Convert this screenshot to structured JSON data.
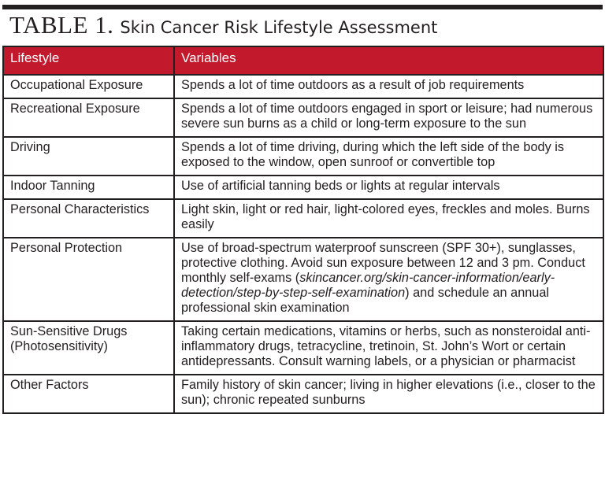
{
  "title": {
    "number": "TABLE 1.",
    "text": "Skin Cancer Risk Lifestyle Assessment"
  },
  "columns": [
    "Lifestyle",
    "Variables"
  ],
  "rows": [
    {
      "lifestyle": "Occupational Exposure",
      "variables": "Spends a lot of time outdoors as a result of job requirements"
    },
    {
      "lifestyle": "Recreational Exposure",
      "variables": "Spends a lot of time outdoors engaged in sport or leisure; had numerous severe sun burns as a child or long-term exposure to the sun"
    },
    {
      "lifestyle": "Driving",
      "variables": "Spends a lot of time driving, during which the left side of the body is exposed to the window, open sunroof or convertible top"
    },
    {
      "lifestyle": "Indoor Tanning",
      "variables": "Use of artificial tanning beds or lights at regular intervals"
    },
    {
      "lifestyle": "Personal Characteristics",
      "variables": "Light skin, light or red hair, light-colored eyes, freckles and moles. Burns easily"
    },
    {
      "lifestyle": "Personal Protection",
      "variables_before": "Use of broad-spectrum waterproof sunscreen (SPF 30+), sunglasses, protective clothing. Avoid sun exposure between 12 and 3 pm. Conduct monthly self-exams (",
      "variables_link": "skincancer.org/skin-cancer-information/early-detection/step-by-step-self-examination",
      "variables_after": ") and schedule an annual professional skin examination"
    },
    {
      "lifestyle": "Sun-Sensitive Drugs (Photosensitivity)",
      "variables": "Taking certain medications, vitamins or herbs, such as nonsteroidal anti-inflammatory drugs, tetracycline, tretinoin, St. John’s Wort or certain antidepressants. Consult warning labels, or a physician or pharmacist"
    },
    {
      "lifestyle": "Other Factors",
      "variables": "Family history of skin cancer; living in higher elevations (i.e., closer to the sun); chronic repeated sunburns"
    }
  ],
  "colors": {
    "header_bg": "#c3192d",
    "header_text": "#ffffff",
    "rule": "#231f20"
  }
}
